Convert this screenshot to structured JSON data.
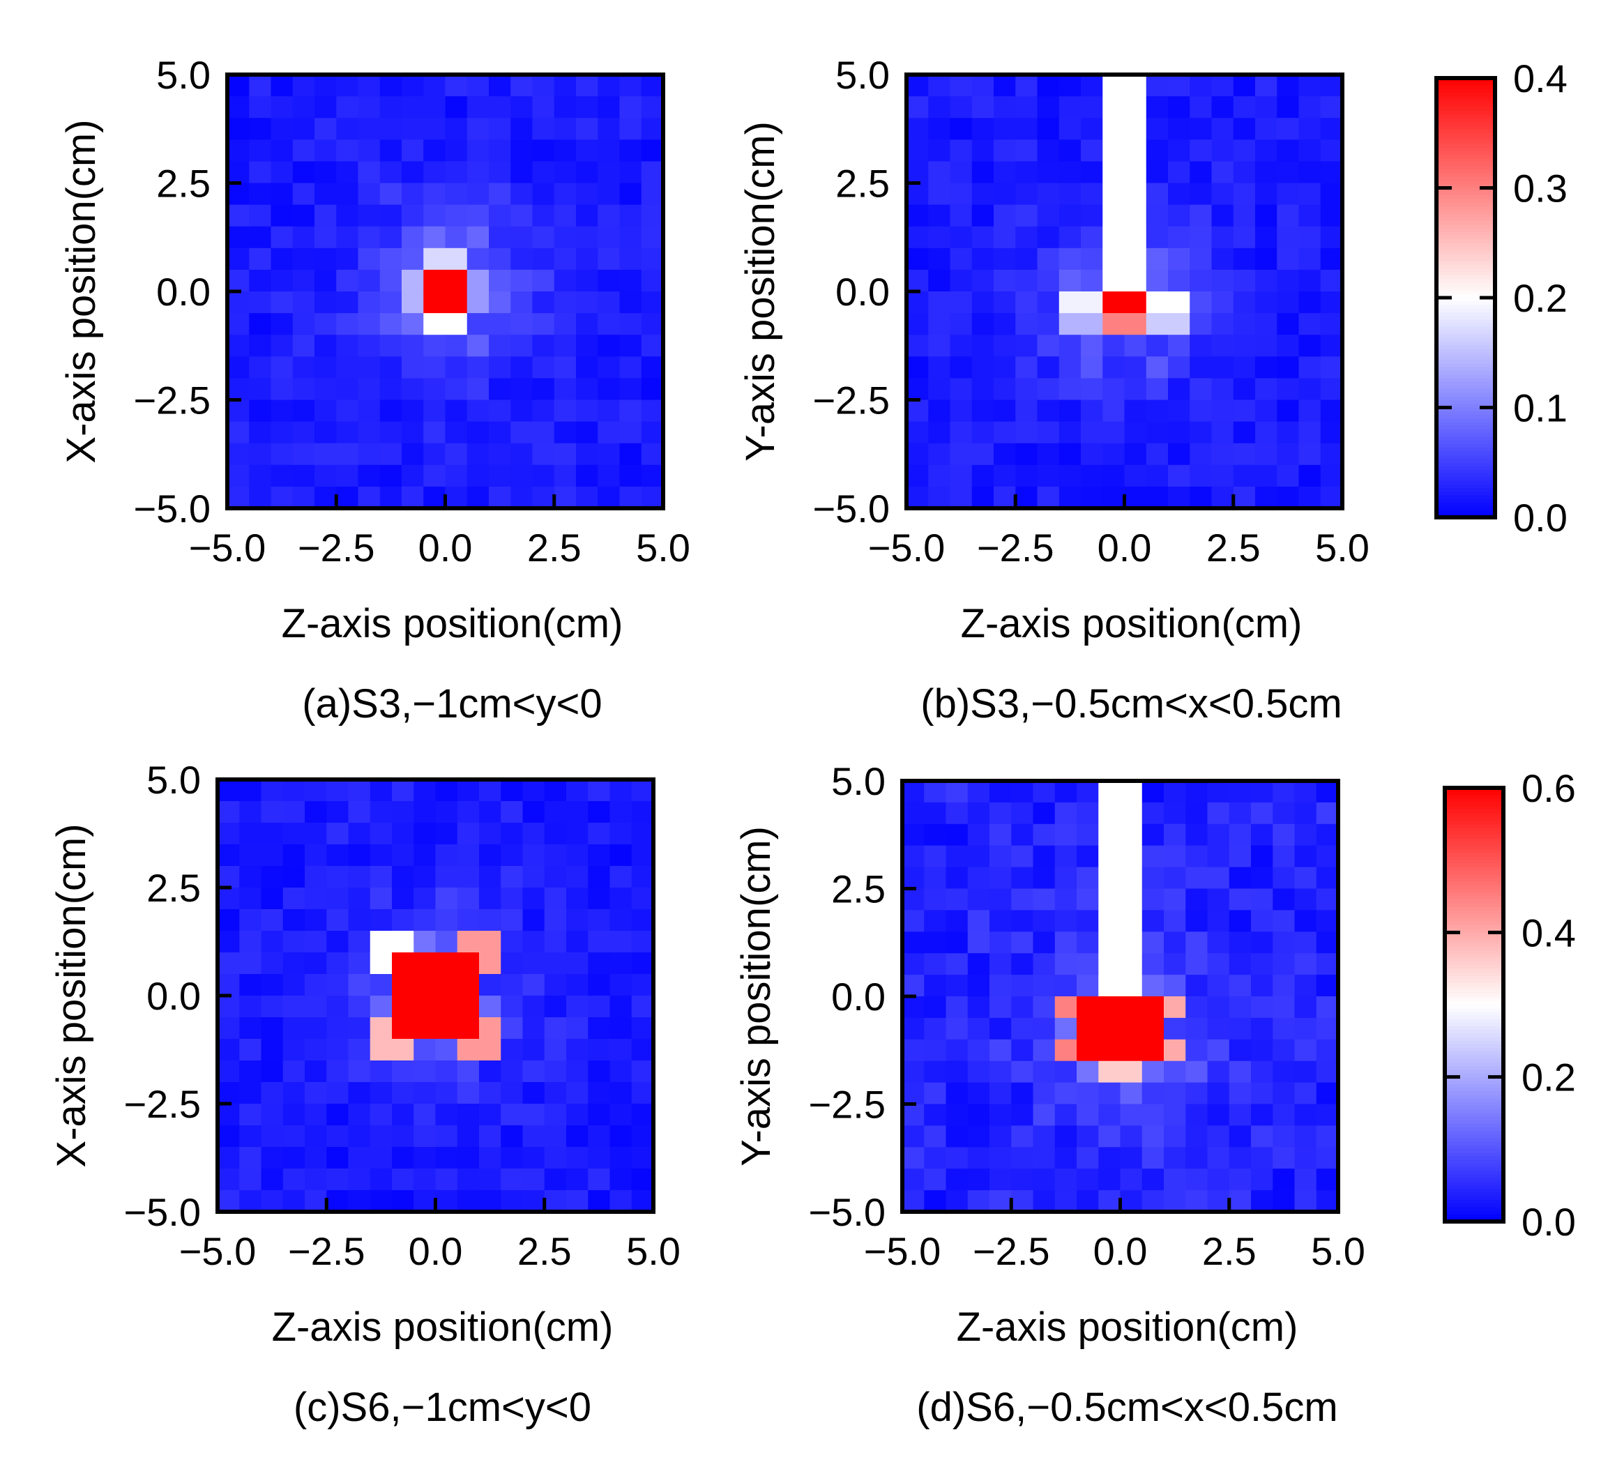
{
  "colors": {
    "low": "#0000ff",
    "mid": "#ffffff",
    "high": "#ff0000",
    "frame": "#000000"
  },
  "colorbars": [
    {
      "id": "top",
      "ticks": [
        "0.0",
        "0.1",
        "0.2",
        "0.3",
        "0.4"
      ],
      "min": 0,
      "max": 0.4
    },
    {
      "id": "bottom",
      "ticks": [
        "0.0",
        "0.2",
        "0.4",
        "0.6"
      ],
      "min": 0,
      "max": 0.6
    }
  ],
  "chart_data": [
    {
      "type": "heatmap",
      "panel": "a",
      "caption": "(a)S3,−1cm<y<0",
      "xlabel": "Z-axis position(cm)",
      "ylabel": "X-axis position(cm)",
      "xlim": [
        -5,
        5
      ],
      "ylim": [
        -5,
        5
      ],
      "xticks": [
        "−5.0",
        "−2.5",
        "0.0",
        "2.5",
        "5.0"
      ],
      "yticks": [
        "−5.0",
        "−2.5",
        "0.0",
        "2.5",
        "5.0"
      ],
      "grid_size": 20,
      "vmax": 0.4,
      "peak": {
        "z": 0.0,
        "y": 0.0,
        "value": 0.4
      },
      "hot_cells": [
        {
          "z": 0.0,
          "y": 0.0,
          "value": 0.4
        },
        {
          "z": -0.5,
          "y": 0.0,
          "value": 0.14
        },
        {
          "z": 0.5,
          "y": 0.0,
          "value": 0.12
        },
        {
          "z": 0.0,
          "y": 0.5,
          "value": 0.17
        },
        {
          "z": 0.0,
          "y": -0.5,
          "value": 0.2
        }
      ],
      "background": 0.02,
      "masked_strip": null
    },
    {
      "type": "heatmap",
      "panel": "b",
      "caption": "(b)S3,−0.5cm<x<0.5cm",
      "xlabel": "Z-axis position(cm)",
      "ylabel": "Y-axis position(cm)",
      "xlim": [
        -5,
        5
      ],
      "ylim": [
        -5,
        5
      ],
      "xticks": [
        "−5.0",
        "−2.5",
        "0.0",
        "2.5",
        "5.0"
      ],
      "yticks": [
        "−5.0",
        "−2.5",
        "0.0",
        "2.5",
        "5.0"
      ],
      "grid_size": 20,
      "vmax": 0.4,
      "peak": {
        "z": 0.0,
        "y": -0.25,
        "value": 0.4
      },
      "hot_cells": [
        {
          "z": 0.0,
          "y": -0.25,
          "value": 0.4
        },
        {
          "z": 0.0,
          "y": -0.75,
          "value": 0.3
        },
        {
          "z": -1.0,
          "y": -0.25,
          "value": 0.19
        },
        {
          "z": 1.0,
          "y": -0.25,
          "value": 0.2
        },
        {
          "z": -1.0,
          "y": -0.75,
          "value": 0.14
        },
        {
          "z": 1.0,
          "y": -0.75,
          "value": 0.16
        }
      ],
      "background": 0.02,
      "masked_strip": {
        "z_from": -0.5,
        "z_to": 0.5,
        "y_from": 0.0,
        "y_to": 5.0
      }
    },
    {
      "type": "heatmap",
      "panel": "c",
      "caption": "(c)S6,−1cm<y<0",
      "xlabel": "Z-axis position(cm)",
      "ylabel": "X-axis position(cm)",
      "xlim": [
        -5,
        5
      ],
      "ylim": [
        -5,
        5
      ],
      "xticks": [
        "−5.0",
        "−2.5",
        "0.0",
        "2.5",
        "5.0"
      ],
      "yticks": [
        "−5.0",
        "−2.5",
        "0.0",
        "2.5",
        "5.0"
      ],
      "grid_size": 20,
      "vmax": 0.6,
      "peak": {
        "z": 0.0,
        "y": 0.0,
        "value": 0.6
      },
      "hot_cells": [
        {
          "z": 0.0,
          "y": 0.0,
          "value": 0.6
        },
        {
          "z": -0.5,
          "y": 0.5,
          "value": 0.6
        },
        {
          "z": 0.5,
          "y": 0.5,
          "value": 0.6
        },
        {
          "z": -0.5,
          "y": -0.5,
          "value": 0.6
        },
        {
          "z": 0.5,
          "y": -0.5,
          "value": 0.6
        },
        {
          "z": -1.0,
          "y": 1.0,
          "value": 0.3
        },
        {
          "z": 1.0,
          "y": 1.0,
          "value": 0.42
        },
        {
          "z": -1.0,
          "y": -1.0,
          "value": 0.38
        },
        {
          "z": 1.0,
          "y": -1.0,
          "value": 0.42
        }
      ],
      "background": 0.03,
      "masked_strip": null
    },
    {
      "type": "heatmap",
      "panel": "d",
      "caption": "(d)S6,−0.5cm<x<0.5cm",
      "xlabel": "Z-axis position(cm)",
      "ylabel": "Y-axis position(cm)",
      "xlim": [
        -5,
        5
      ],
      "ylim": [
        -5,
        5
      ],
      "xticks": [
        "−5.0",
        "−2.5",
        "0.0",
        "2.5",
        "5.0"
      ],
      "yticks": [
        "−5.0",
        "−2.5",
        "0.0",
        "2.5",
        "5.0"
      ],
      "grid_size": 20,
      "vmax": 0.6,
      "peak": {
        "z": 0.0,
        "y": -0.75,
        "value": 0.6
      },
      "hot_cells": [
        {
          "z": 0.0,
          "y": -0.5,
          "value": 0.6
        },
        {
          "z": 0.0,
          "y": -1.0,
          "value": 0.6
        },
        {
          "z": -0.5,
          "y": -0.5,
          "value": 0.6
        },
        {
          "z": 0.5,
          "y": -0.5,
          "value": 0.6
        },
        {
          "z": -0.5,
          "y": -1.0,
          "value": 0.6
        },
        {
          "z": 0.5,
          "y": -1.0,
          "value": 0.6
        },
        {
          "z": -1.0,
          "y": -0.25,
          "value": 0.45
        },
        {
          "z": 1.0,
          "y": -0.25,
          "value": 0.4
        },
        {
          "z": -1.0,
          "y": -1.25,
          "value": 0.45
        },
        {
          "z": 1.0,
          "y": -1.25,
          "value": 0.4
        },
        {
          "z": 0.0,
          "y": -1.75,
          "value": 0.36
        }
      ],
      "background": 0.04,
      "masked_strip": {
        "z_from": -0.5,
        "z_to": 0.5,
        "y_from": 0.0,
        "y_to": 5.0
      }
    }
  ]
}
